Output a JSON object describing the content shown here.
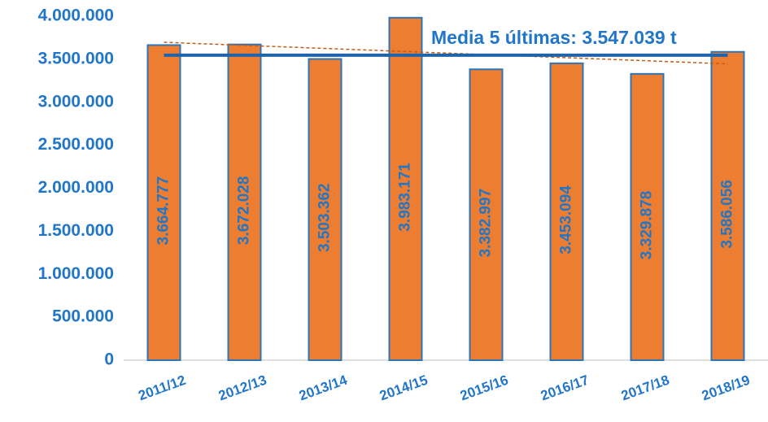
{
  "chart_data": {
    "type": "bar",
    "categories": [
      "2011/12",
      "2012/13",
      "2013/14",
      "2014/15",
      "2015/16",
      "2016/17",
      "2017/18",
      "2018/19"
    ],
    "values": [
      3664777,
      3672028,
      3503362,
      3983171,
      3382997,
      3453094,
      3329878,
      3586056
    ],
    "value_labels": [
      "3.664.777",
      "3.672.028",
      "3.503.362",
      "3.983.171",
      "3.382.997",
      "3.453.094",
      "3.329.878",
      "3.586.056"
    ],
    "color": "#ed7d31",
    "ylim": [
      0,
      4000000
    ],
    "yticks": [
      0,
      {
        "value": 500000,
        "label": "500.000"
      },
      {
        "value": 1000000,
        "label": "1.000.000"
      },
      {
        "value": 1500000,
        "label": "1.500.000"
      },
      {
        "value": 2000000,
        "label": "2.000.000"
      },
      {
        "value": 2500000,
        "label": "2.500.000"
      },
      {
        "value": 3000000,
        "label": "3.000.000"
      },
      {
        "value": 3500000,
        "label": "3.500.000"
      },
      {
        "value": 4000000,
        "label": "4.000.000"
      }
    ],
    "grid": false,
    "average": 3547039,
    "annotation": "Media 5 últimas: 3.547.039 t",
    "trendline": true
  }
}
